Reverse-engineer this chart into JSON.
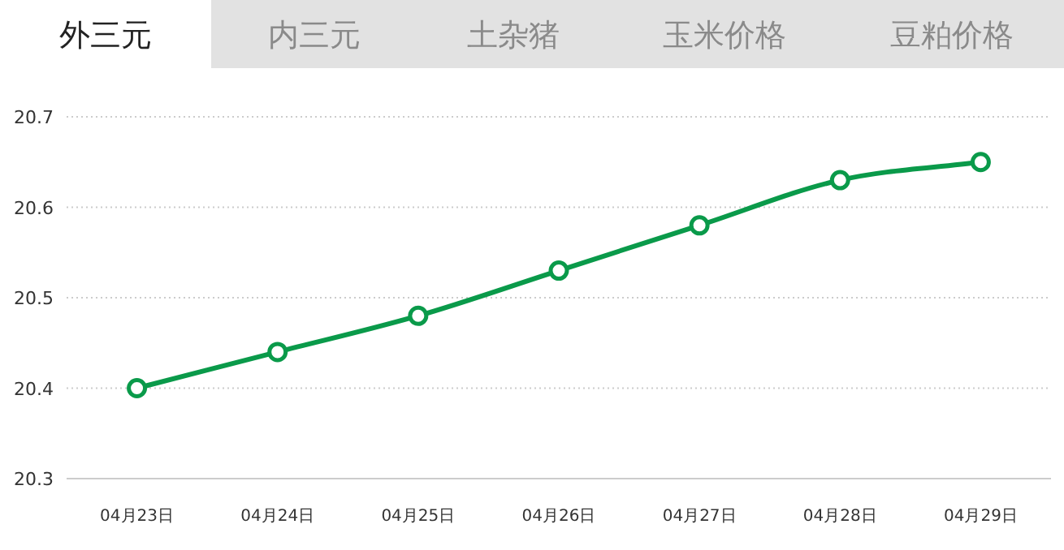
{
  "chart_data": {
    "type": "line",
    "annotations": [
      "外三元",
      "内三元",
      "土杂猪",
      "玉米价格",
      "豆粕价格"
    ],
    "categories": [
      "04月23日",
      "04月24日",
      "04月25日",
      "04月26日",
      "04月27日",
      "04月28日",
      "04月29日"
    ],
    "series": [
      {
        "color": "#0a9a4a",
        "values": [
          20.4,
          20.44,
          20.48,
          20.53,
          20.58,
          20.63,
          20.65
        ]
      }
    ],
    "ylim": [
      20.3,
      20.7
    ],
    "yticks": [
      20.3,
      20.4,
      20.5,
      20.6,
      20.7
    ],
    "grid": "y",
    "marker": "circle",
    "line_style": "solid"
  }
}
